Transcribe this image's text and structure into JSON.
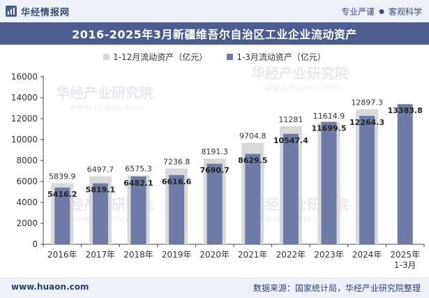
{
  "header": {
    "brand": "华经情报网",
    "slogan_left": "专业严谨",
    "slogan_dot": "●",
    "slogan_right": "客观科学"
  },
  "watermark": {
    "cn": "华经产业研究院",
    "url": "www.huaon.com"
  },
  "footer": {
    "url": "www.huaon.com",
    "source": "数据来源：国家统计局，华经产业研究院整理"
  },
  "colors": {
    "series_full_year": "#d9d9d9",
    "series_q1": "#6f7aa6",
    "header_bar": "#4e5b8e",
    "text": "#333333"
  },
  "chart_data": {
    "type": "bar",
    "title": "2016-2025年3月新疆维吾尔自治区工业企业流动资产",
    "categories": [
      "2016年",
      "2017年",
      "2018年",
      "2019年",
      "2020年",
      "2021年",
      "2022年",
      "2023年",
      "2024年",
      "2025年\n1-3月"
    ],
    "series": [
      {
        "name": "1-12月流动资产（亿元）",
        "color": "#d9d9d9",
        "values": [
          5839.9,
          6497.7,
          6575.3,
          7236.8,
          8191.3,
          9704.8,
          11281,
          11614.9,
          12897.3,
          null
        ],
        "labels": [
          "5839.9",
          "6497.7",
          "6575.3",
          "7236.8",
          "8191.3",
          "9704.8",
          "11281",
          "11614.9",
          "12897.3",
          ""
        ]
      },
      {
        "name": "1-3月流动资产（亿元）",
        "color": "#6f7aa6",
        "values": [
          5416.2,
          5819.1,
          6482.1,
          6616.6,
          7690.7,
          8629.5,
          10547.4,
          11699.5,
          12264.3,
          13383.8
        ],
        "labels": [
          "5416.2",
          "5819.1",
          "6482.1",
          "6616.6",
          "7690.7",
          "8629.5",
          "10547.4",
          "11699.5",
          "12264.3",
          "13383.8"
        ]
      }
    ],
    "ylim": [
      0,
      16000
    ],
    "yticks": [
      0,
      2000,
      4000,
      6000,
      8000,
      10000,
      12000,
      14000,
      16000
    ],
    "grid": false,
    "legend": "top-center"
  }
}
